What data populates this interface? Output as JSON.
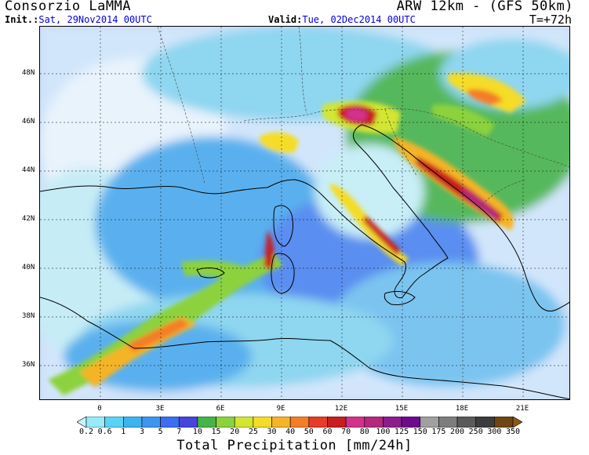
{
  "header": {
    "organization": "Consorzio LaMMA",
    "model": "ARW 12km - (GFS 50km)",
    "init_label": "Init.:",
    "init_value": "Sat, 29Nov2014 00UTC",
    "valid_label": "Valid:",
    "valid_value": "Tue, 02Dec2014 00UTC",
    "forecast_step": "T=+72h"
  },
  "map": {
    "lat_labels": [
      "48N",
      "46N",
      "44N",
      "42N",
      "40N",
      "38N",
      "36N"
    ],
    "lon_labels": [
      "0",
      "3E",
      "6E",
      "9E",
      "12E",
      "15E",
      "18E",
      "21E"
    ]
  },
  "colorbar": {
    "title": "Total Precipitation [mm/24h]",
    "ticks": [
      "0.2",
      "0.6",
      "1",
      "3",
      "5",
      "7",
      "10",
      "15",
      "20",
      "25",
      "30",
      "40",
      "50",
      "60",
      "70",
      "80",
      "100",
      "125",
      "150",
      "175",
      "200",
      "250",
      "300",
      "350"
    ],
    "colors": [
      "#c8f8ff",
      "#96ecf8",
      "#5ad2f5",
      "#3cb4f0",
      "#3c96f0",
      "#3c6ef0",
      "#4646dc",
      "#46b446",
      "#8cd23c",
      "#d2e632",
      "#f5dc28",
      "#f5b428",
      "#f57d28",
      "#e63c28",
      "#c81e1e",
      "#d2328c",
      "#b4287d",
      "#8c1e8c",
      "#6e0a8c",
      "#a0a0a0",
      "#7d7d7d",
      "#5a5a5a",
      "#3c3c3c",
      "#6e4614",
      "#8c5a14"
    ]
  }
}
